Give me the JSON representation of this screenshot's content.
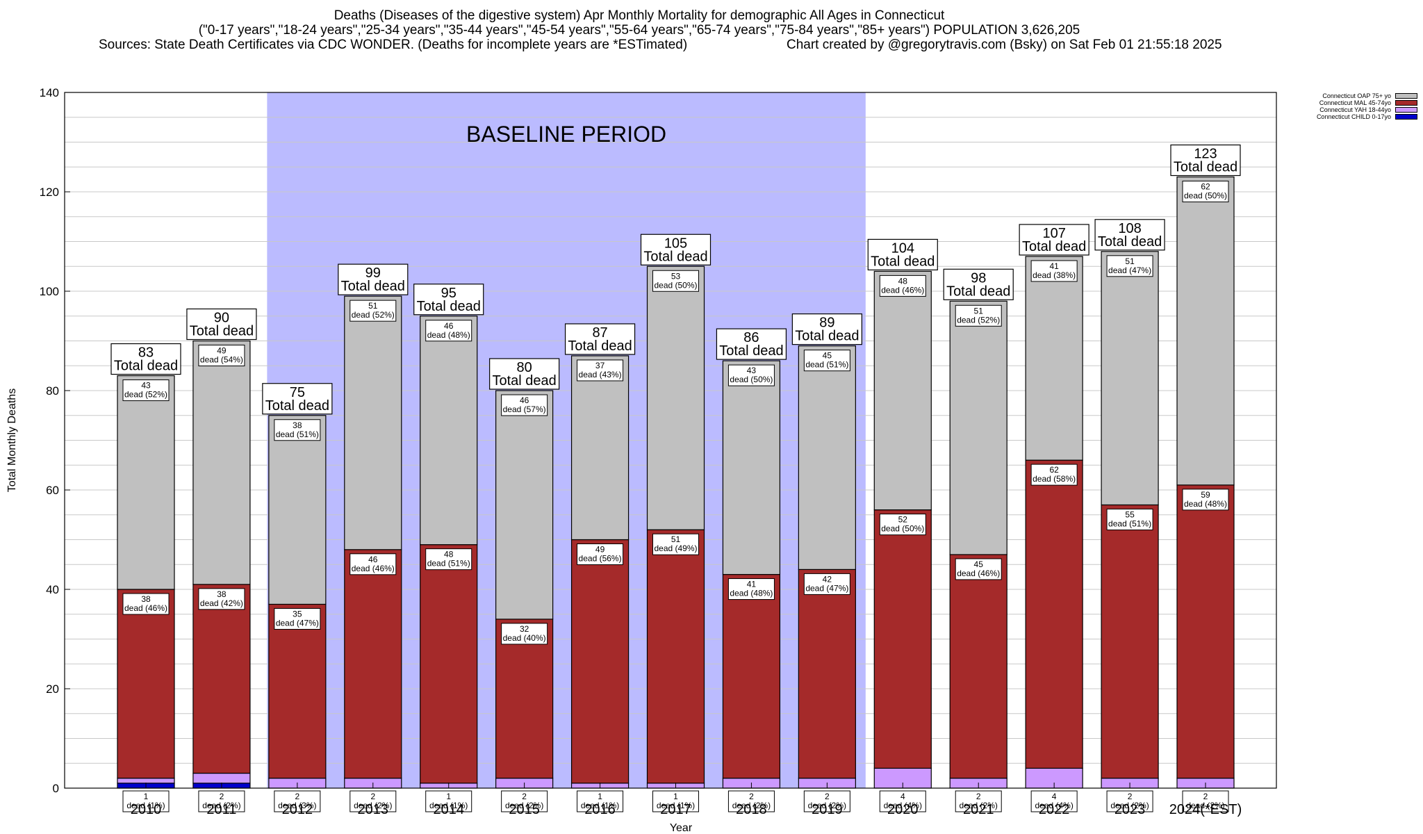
{
  "header": {
    "title_lines": [
      "Deaths (Diseases of the digestive system) Apr Monthly Mortality for demographic All Ages in Connecticut",
      "(\"0-17 years\",\"18-24 years\",\"25-34 years\",\"35-44 years\",\"45-54 years\",\"55-64 years\",\"65-74 years\",\"75-84 years\",\"85+ years\") POPULATION 3,626,205"
    ],
    "source": "Sources: State Death Certificates via CDC WONDER. (Deaths for incomplete years are *ESTimated)",
    "credit": "Chart created by @gregorytravis.com (Bsky) on Sat Feb 01 21:55:18 2025"
  },
  "legend": [
    {
      "label": "Connecticut OAP 75+ yo",
      "color": "#c0c0c0"
    },
    {
      "label": "Connecticut MAL 45-74yo",
      "color": "#a52a2a"
    },
    {
      "label": "Connecticut YAH 18-44yo",
      "color": "#cc99ff"
    },
    {
      "label": "Connecticut CHILD 0-17yo",
      "color": "#0000cc"
    }
  ],
  "chart_data": {
    "type": "bar",
    "stacked": true,
    "xlabel": "Year",
    "ylabel": "Total Monthly Deaths",
    "ylim": [
      0,
      140
    ],
    "yticks": [
      0,
      20,
      40,
      60,
      80,
      100,
      120,
      140
    ],
    "grid": true,
    "baseline_label": "BASELINE PERIOD",
    "baseline_range": [
      "2012",
      "2019"
    ],
    "total_suffix": "Total dead",
    "segment_suffix": "dead",
    "categories": [
      "2010",
      "2011",
      "2012",
      "2013",
      "2014",
      "2015",
      "2016",
      "2017",
      "2018",
      "2019",
      "2020",
      "2021",
      "2022",
      "2023",
      "2024(*EST)"
    ],
    "series": [
      {
        "name": "Connecticut CHILD 0-17yo",
        "color": "#0000cc",
        "values": [
          1,
          1,
          0,
          0,
          0,
          0,
          0,
          0,
          0,
          0,
          0,
          0,
          0,
          0,
          0
        ]
      },
      {
        "name": "Connecticut YAH 18-44yo",
        "color": "#cc99ff",
        "values": [
          1,
          2,
          2,
          2,
          1,
          2,
          1,
          1,
          2,
          2,
          4,
          2,
          4,
          2,
          2
        ]
      },
      {
        "name": "Connecticut MAL 45-74yo",
        "color": "#a52a2a",
        "values": [
          38,
          38,
          35,
          46,
          48,
          32,
          49,
          51,
          41,
          42,
          52,
          45,
          62,
          55,
          59
        ]
      },
      {
        "name": "Connecticut OAP 75+ yo",
        "color": "#c0c0c0",
        "values": [
          43,
          49,
          38,
          51,
          46,
          46,
          37,
          53,
          43,
          45,
          48,
          51,
          41,
          51,
          62
        ]
      }
    ],
    "segment_labels": [
      {
        "name": "Connecticut YAH 18-44yo",
        "labels": [
          "(1%)",
          "(2%)",
          "(3%)",
          "(2%)",
          "(1%)",
          "(2%)",
          "(1%)",
          "(1%)",
          "(2%)",
          "(2%)",
          "(4%)",
          "(2%)",
          "(4%)",
          "(2%)",
          "(2%)"
        ]
      },
      {
        "name": "Connecticut MAL 45-74yo",
        "labels": [
          "(46%)",
          "(42%)",
          "(47%)",
          "(46%)",
          "(51%)",
          "(40%)",
          "(56%)",
          "(49%)",
          "(48%)",
          "(47%)",
          "(50%)",
          "(46%)",
          "(58%)",
          "(51%)",
          "(48%)"
        ]
      },
      {
        "name": "Connecticut OAP 75+ yo",
        "labels": [
          "(52%)",
          "(54%)",
          "(51%)",
          "(52%)",
          "(48%)",
          "(57%)",
          "(43%)",
          "(50%)",
          "(50%)",
          "(51%)",
          "(46%)",
          "(52%)",
          "(38%)",
          "(47%)",
          "(50%)"
        ]
      }
    ],
    "totals": [
      83,
      90,
      75,
      99,
      95,
      80,
      87,
      105,
      86,
      89,
      104,
      98,
      107,
      108,
      123
    ]
  }
}
